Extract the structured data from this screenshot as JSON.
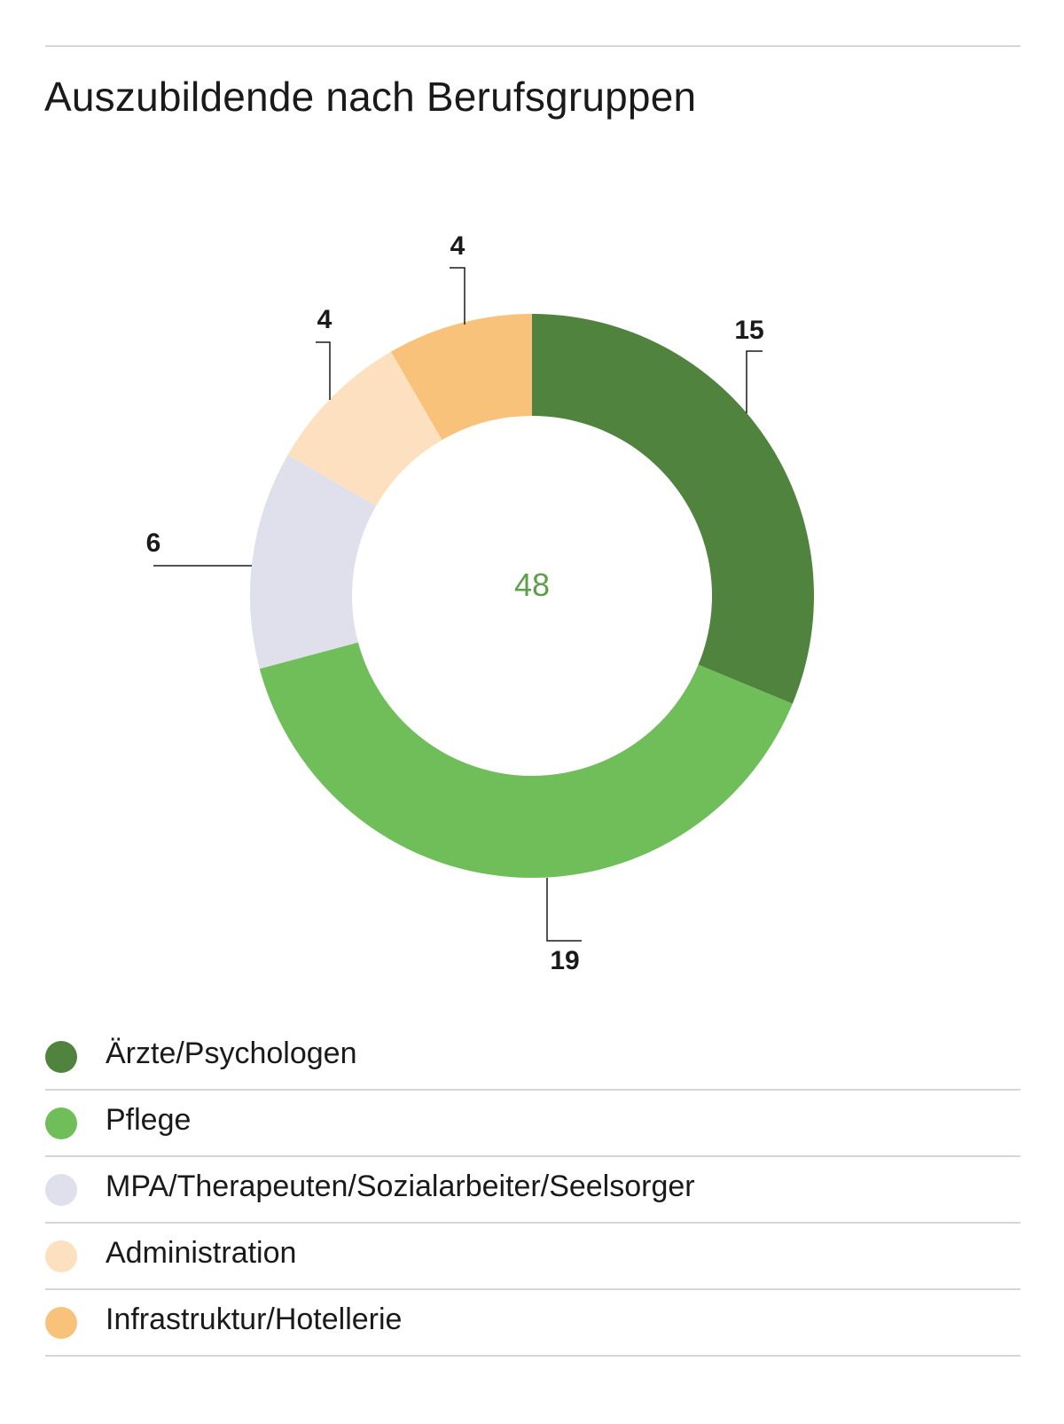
{
  "chart_data": {
    "type": "pie",
    "title": "Auszubildende nach Berufsgruppen",
    "total": 48,
    "categories": [
      "Ärzte/Psychologen",
      "Pflege",
      "MPA/Therapeuten/Sozialarbeiter/Seelsorger",
      "Administration",
      "Infrastruktur/Hotellerie"
    ],
    "values": [
      15,
      19,
      6,
      4,
      4
    ],
    "colors": [
      "#50833d",
      "#70be5a",
      "#dfe0eb",
      "#fde0bf",
      "#f9c27a"
    ],
    "total_color": "#5ba04a",
    "donut": true,
    "legend_position": "bottom"
  }
}
